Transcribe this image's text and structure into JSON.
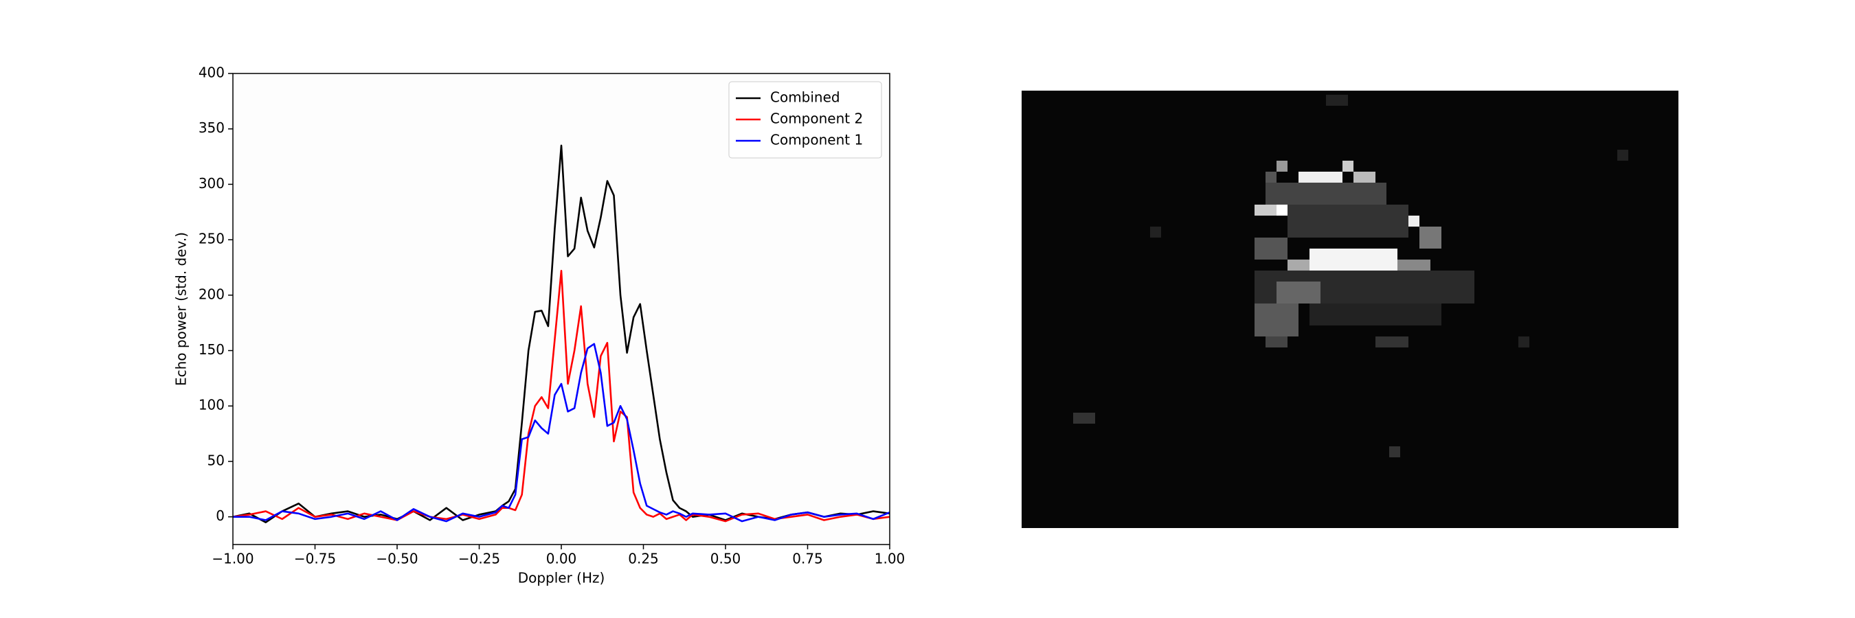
{
  "chart_data": {
    "type": "line",
    "xlabel": "Doppler (Hz)",
    "ylabel": "Echo power (std. dev.)",
    "x": [
      -1,
      -0.95,
      -0.9,
      -0.85,
      -0.8,
      -0.75,
      -0.7,
      -0.65,
      -0.6,
      -0.55,
      -0.5,
      -0.45,
      -0.4,
      -0.35,
      -0.3,
      -0.25,
      -0.2,
      -0.18,
      -0.16,
      -0.14,
      -0.12,
      -0.1,
      -0.08,
      -0.06,
      -0.04,
      -0.02,
      0,
      0.02,
      0.04,
      0.06,
      0.08,
      0.1,
      0.12,
      0.14,
      0.16,
      0.18,
      0.2,
      0.22,
      0.24,
      0.26,
      0.28,
      0.3,
      0.32,
      0.34,
      0.36,
      0.38,
      0.4,
      0.45,
      0.5,
      0.55,
      0.6,
      0.65,
      0.7,
      0.75,
      0.8,
      0.85,
      0.9,
      0.95,
      1
    ],
    "series": [
      {
        "name": "Combined",
        "color": "#000000",
        "values": [
          0,
          3,
          -5,
          5,
          12,
          0,
          3,
          5,
          0,
          2,
          -2,
          5,
          -3,
          8,
          -3,
          2,
          5,
          10,
          14,
          25,
          85,
          150,
          185,
          186,
          172,
          260,
          335,
          235,
          242,
          288,
          258,
          243,
          270,
          303,
          290,
          200,
          148,
          180,
          192,
          150,
          110,
          70,
          40,
          15,
          8,
          5,
          0,
          2,
          -3,
          3,
          0,
          -2,
          2,
          4,
          0,
          3,
          2,
          5,
          3
        ]
      },
      {
        "name": "Component 2",
        "color": "#ff0000",
        "values": [
          0,
          2,
          5,
          -2,
          8,
          0,
          2,
          -2,
          3,
          0,
          -3,
          5,
          0,
          -2,
          2,
          -2,
          2,
          8,
          8,
          6,
          20,
          75,
          100,
          108,
          98,
          160,
          222,
          120,
          150,
          190,
          120,
          90,
          145,
          157,
          68,
          95,
          90,
          22,
          8,
          2,
          0,
          3,
          -2,
          0,
          2,
          -3,
          2,
          0,
          -4,
          2,
          3,
          -2,
          0,
          2,
          -3,
          0,
          2,
          -2,
          0
        ]
      },
      {
        "name": "Component 1",
        "color": "#0000ff",
        "values": [
          0,
          0,
          -3,
          5,
          3,
          -2,
          0,
          3,
          -2,
          5,
          -3,
          7,
          0,
          -4,
          3,
          0,
          4,
          10,
          8,
          20,
          70,
          72,
          87,
          80,
          75,
          110,
          120,
          95,
          98,
          130,
          152,
          156,
          130,
          82,
          85,
          100,
          88,
          60,
          30,
          10,
          7,
          4,
          2,
          5,
          3,
          0,
          3,
          2,
          3,
          -4,
          0,
          -3,
          2,
          4,
          0,
          2,
          3,
          -2,
          4
        ]
      }
    ],
    "xlim": [
      -1,
      1
    ],
    "xticks": [
      {
        "value": -1,
        "label": "−1.00"
      },
      {
        "value": -0.75,
        "label": "−0.75"
      },
      {
        "value": -0.5,
        "label": "−0.50"
      },
      {
        "value": -0.25,
        "label": "−0.25"
      },
      {
        "value": 0,
        "label": "0.00"
      },
      {
        "value": 0.25,
        "label": "0.25"
      },
      {
        "value": 0.5,
        "label": "0.50"
      },
      {
        "value": 0.75,
        "label": "0.75"
      },
      {
        "value": 1,
        "label": "1.00"
      }
    ],
    "ylim": [
      -25,
      400
    ],
    "yticks": [
      0,
      50,
      100,
      150,
      200,
      250,
      300,
      350,
      400
    ],
    "legend": "upper right"
  }
}
